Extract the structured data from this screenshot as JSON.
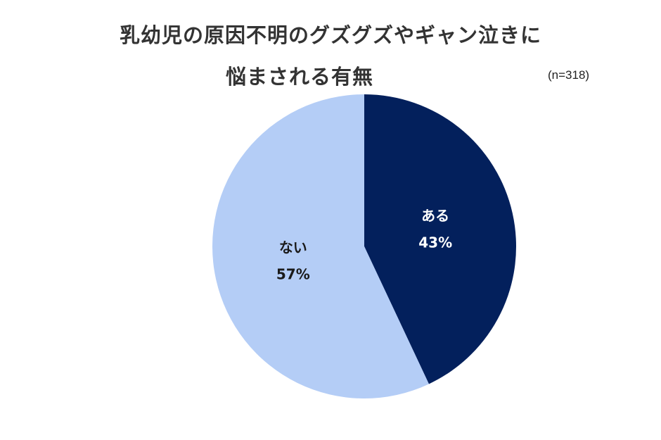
{
  "title": {
    "line1": "乳幼児の原因不明のグズグズやギャン泣きに",
    "line2": "悩まされる有無"
  },
  "sample_size": "(n=318)",
  "colors": {
    "aru": "#03205c",
    "nai": "#b4cdf6",
    "aru_text": "#ffffff",
    "nai_text": "#1a1a1a"
  },
  "chart_data": {
    "type": "pie",
    "title": "乳幼児の原因不明のグズグズやギャン泣きに悩まされる有無",
    "n": 318,
    "categories": [
      "ある",
      "ない"
    ],
    "values": [
      43,
      57
    ],
    "value_labels": [
      "43%",
      "57%"
    ],
    "start": "12 o'clock",
    "direction": "clockwise"
  }
}
